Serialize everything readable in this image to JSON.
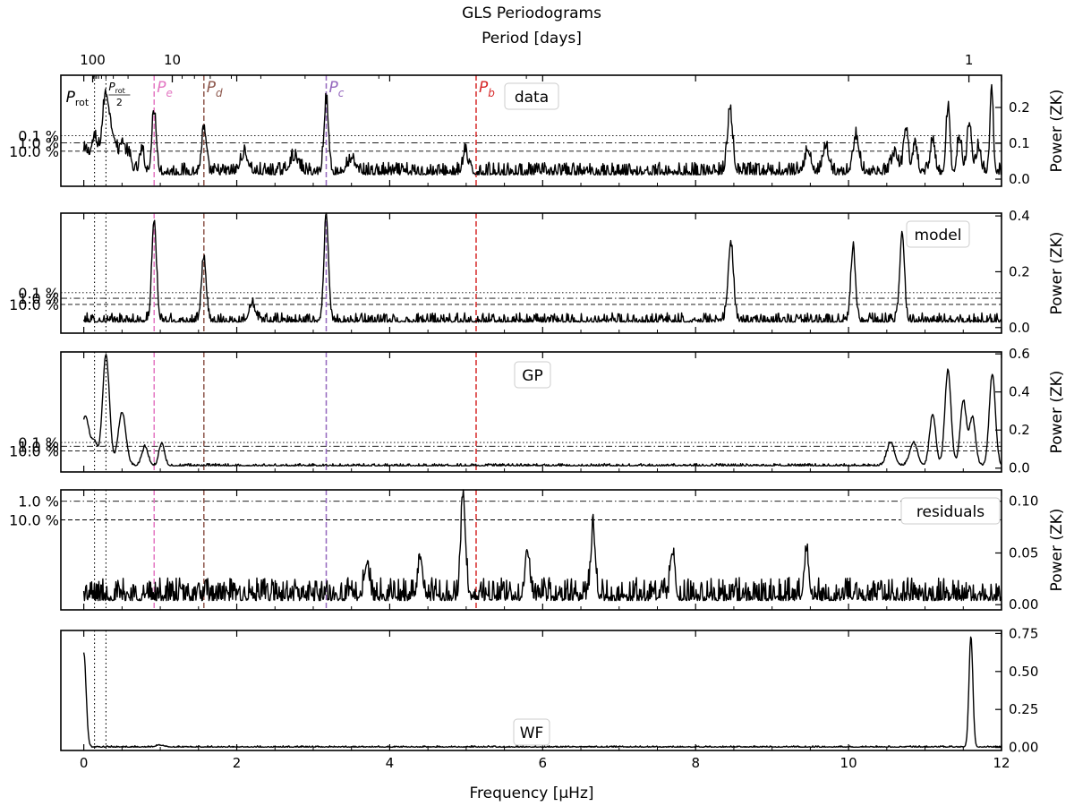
{
  "figure": {
    "title": "GLS Periodograms",
    "top_axis_label": "Period [days]",
    "top_ticks": [
      {
        "label": "100",
        "freq": 0.116
      },
      {
        "label": "10",
        "freq": 1.157
      },
      {
        "label": "1",
        "freq": 11.574
      }
    ],
    "x_label": "Frequency [μHz]",
    "y_label": "Power (ZK)",
    "x_range": [
      -0.3,
      12
    ],
    "x_ticks": [
      0,
      2,
      4,
      6,
      8,
      10,
      12
    ]
  },
  "markers": {
    "rotation": [
      {
        "freq": 0.14,
        "label": "P",
        "sub": "rot"
      },
      {
        "freq": 0.29,
        "label_num": "P",
        "label_num_sub": "rot",
        "label_den": "2"
      }
    ],
    "planets": [
      {
        "freq": 0.92,
        "letter": "P",
        "sub": "e",
        "color": "#e377c2"
      },
      {
        "freq": 1.57,
        "letter": "P",
        "sub": "d",
        "color": "#8c564b"
      },
      {
        "freq": 3.17,
        "letter": "P",
        "sub": "c",
        "color": "#9467bd"
      },
      {
        "freq": 5.13,
        "letter": "P",
        "sub": "b",
        "color": "#d62728"
      }
    ]
  },
  "chart_data": [
    {
      "type": "line",
      "name": "data",
      "ylim": [
        -0.02,
        0.29
      ],
      "yticks": [
        0.0,
        0.1,
        0.2
      ],
      "ytick_labels": [
        "0.0",
        "0.1",
        "0.2"
      ],
      "fap_levels": [
        {
          "label": "0.1 %",
          "power": 0.121,
          "style": "dotted"
        },
        {
          "label": "1.0 %",
          "power": 0.101,
          "style": "dashdot"
        },
        {
          "label": "10.0 %",
          "power": 0.078,
          "style": "dashed"
        }
      ],
      "show_planets": true,
      "show_rot_labels": true,
      "baseline": 0.012,
      "noise": 0.022,
      "spiky": true,
      "peaks": [
        [
          0.02,
          0.06,
          0.05
        ],
        [
          0.14,
          0.09,
          0.04
        ],
        [
          0.29,
          0.22,
          0.05
        ],
        [
          0.4,
          0.08,
          0.04
        ],
        [
          0.5,
          0.08,
          0.03
        ],
        [
          0.58,
          0.05,
          0.04
        ],
        [
          0.76,
          0.06,
          0.03
        ],
        [
          0.92,
          0.17,
          0.03
        ],
        [
          1.57,
          0.12,
          0.03
        ],
        [
          2.1,
          0.05,
          0.05
        ],
        [
          2.75,
          0.04,
          0.06
        ],
        [
          3.17,
          0.2,
          0.03
        ],
        [
          3.5,
          0.03,
          0.06
        ],
        [
          4.99,
          0.06,
          0.03
        ],
        [
          8.45,
          0.17,
          0.035
        ],
        [
          9.47,
          0.06,
          0.04
        ],
        [
          9.7,
          0.07,
          0.04
        ],
        [
          10.1,
          0.1,
          0.04
        ],
        [
          10.6,
          0.05,
          0.04
        ],
        [
          10.75,
          0.12,
          0.03
        ],
        [
          10.87,
          0.08,
          0.03
        ],
        [
          11.1,
          0.09,
          0.03
        ],
        [
          11.3,
          0.18,
          0.025
        ],
        [
          11.45,
          0.1,
          0.03
        ],
        [
          11.58,
          0.14,
          0.03
        ],
        [
          11.7,
          0.07,
          0.03
        ],
        [
          11.87,
          0.25,
          0.02
        ]
      ]
    },
    {
      "type": "line",
      "name": "model",
      "ylim": [
        -0.02,
        0.41
      ],
      "yticks": [
        0.0,
        0.2,
        0.4
      ],
      "ytick_labels": [
        "0.0",
        "0.2",
        "0.4"
      ],
      "fap_levels": [
        {
          "label": "0.1 %",
          "power": 0.125,
          "style": "dotted"
        },
        {
          "label": "1.0 %",
          "power": 0.105,
          "style": "dashdot"
        },
        {
          "label": "10.0 %",
          "power": 0.083,
          "style": "dashed"
        }
      ],
      "show_planets": true,
      "show_rot_labels": false,
      "baseline": 0.02,
      "noise": 0.022,
      "spiky": false,
      "peaks": [
        [
          0.92,
          0.36,
          0.03
        ],
        [
          1.57,
          0.23,
          0.03
        ],
        [
          2.2,
          0.06,
          0.04
        ],
        [
          3.17,
          0.37,
          0.03
        ],
        [
          8.46,
          0.28,
          0.035
        ],
        [
          10.06,
          0.26,
          0.03
        ],
        [
          10.7,
          0.32,
          0.03
        ]
      ]
    },
    {
      "type": "line",
      "name": "GP",
      "ylim": [
        -0.02,
        0.61
      ],
      "yticks": [
        0.0,
        0.2,
        0.4,
        0.6
      ],
      "ytick_labels": [
        "0.0",
        "0.2",
        "0.4",
        "0.6"
      ],
      "fap_levels": [
        {
          "label": "0.1 %",
          "power": 0.135,
          "style": "dotted"
        },
        {
          "label": "1.0 %",
          "power": 0.115,
          "style": "dashdot"
        },
        {
          "label": "10.0 %",
          "power": 0.09,
          "style": "dashed"
        }
      ],
      "show_planets": true,
      "show_rot_labels": false,
      "baseline": 0.012,
      "noise": 0.008,
      "spiky": false,
      "peaks": [
        [
          0.02,
          0.26,
          0.05
        ],
        [
          0.14,
          0.12,
          0.04
        ],
        [
          0.29,
          0.58,
          0.045
        ],
        [
          0.5,
          0.28,
          0.05
        ],
        [
          0.8,
          0.1,
          0.04
        ],
        [
          1.02,
          0.12,
          0.035
        ],
        [
          10.55,
          0.12,
          0.05
        ],
        [
          10.85,
          0.12,
          0.05
        ],
        [
          11.1,
          0.27,
          0.04
        ],
        [
          11.3,
          0.5,
          0.04
        ],
        [
          11.5,
          0.34,
          0.04
        ],
        [
          11.62,
          0.25,
          0.04
        ],
        [
          11.88,
          0.48,
          0.04
        ]
      ]
    },
    {
      "type": "line",
      "name": "residuals",
      "ylim": [
        -0.005,
        0.111
      ],
      "yticks": [
        0.0,
        0.05,
        0.1
      ],
      "ytick_labels": [
        "0.00",
        "0.05",
        "0.10"
      ],
      "fap_levels": [
        {
          "label": "1.0 %",
          "power": 0.1,
          "style": "dashdot"
        },
        {
          "label": "10.0 %",
          "power": 0.082,
          "style": "dashed"
        }
      ],
      "show_planets": true,
      "show_rot_labels": false,
      "baseline": 0.004,
      "noise": 0.014,
      "spiky": true,
      "peaks": [
        [
          4.96,
          0.1,
          0.03
        ],
        [
          6.66,
          0.065,
          0.03
        ],
        [
          5.8,
          0.045,
          0.03
        ],
        [
          4.4,
          0.04,
          0.03
        ],
        [
          9.45,
          0.045,
          0.03
        ],
        [
          3.7,
          0.035,
          0.03
        ],
        [
          7.7,
          0.04,
          0.03
        ]
      ]
    },
    {
      "type": "line",
      "name": "WF",
      "ylim": [
        -0.02,
        0.77
      ],
      "yticks": [
        0.0,
        0.25,
        0.5,
        0.75
      ],
      "ytick_labels": [
        "0.00",
        "0.25",
        "0.50",
        "0.75"
      ],
      "fap_levels": [],
      "show_planets": false,
      "show_rot_labels": false,
      "baseline": 0.002,
      "noise": 0.006,
      "spiky": false,
      "peaks": [
        [
          0.0,
          0.62,
          0.03
        ],
        [
          1.0,
          0.012,
          0.05
        ],
        [
          11.6,
          0.73,
          0.025
        ]
      ]
    }
  ]
}
